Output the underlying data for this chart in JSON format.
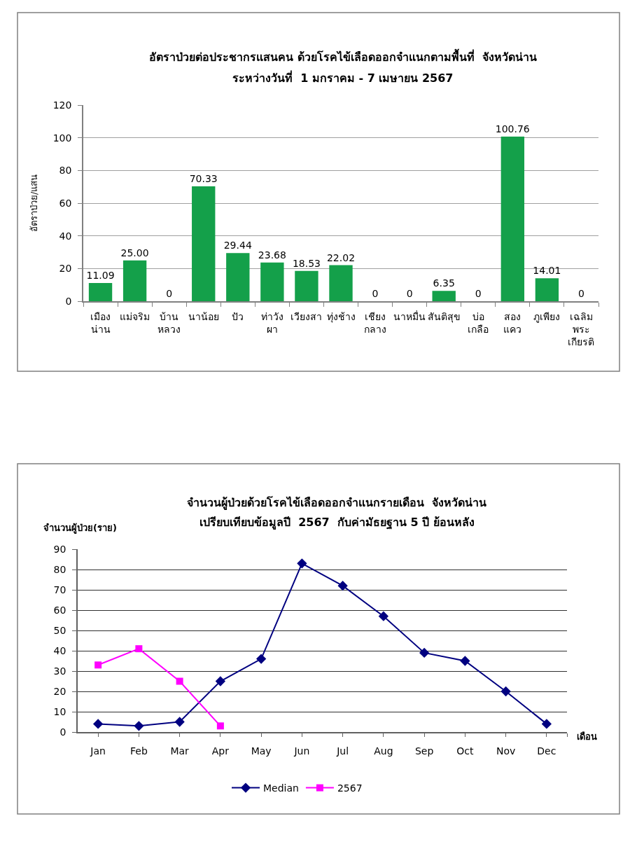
{
  "chart_data": [
    {
      "type": "bar",
      "title": "อัตราป่วยต่อประชากรแสนคน ด้วยโรคไข้เลือดออกจำแนกตามพื้นที่  จังหวัดน่าน",
      "subtitle": "ระหว่างวันที่  1 มกราคม - 7 เมษายน 2567",
      "ylabel": "อัตราป่วย/แสน",
      "categories": [
        "เมือง\nน่าน",
        "แม่จริม",
        "บ้าน\nหลวง",
        "นาน้อย",
        "ปัว",
        "ท่าวัง\nผา",
        "เวียงสา",
        "ทุ่งช้าง",
        "เชียง\nกลาง",
        "นาหมื่น",
        "สันติสุข",
        "บ่อ\nเกลือ",
        "สอง\nแคว",
        "ภูเพียง",
        "เฉลิม\nพระ\nเกียรติ"
      ],
      "values": [
        11.09,
        25.0,
        0,
        70.33,
        29.44,
        23.68,
        18.53,
        22.02,
        0,
        0,
        6.35,
        0,
        100.76,
        14.01,
        0
      ],
      "value_labels": [
        "11.09",
        "25.00",
        "0",
        "70.33",
        "29.44",
        "23.68",
        "18.53",
        "22.02",
        "0",
        "0",
        "6.35",
        "0",
        "100.76",
        "14.01",
        "0"
      ],
      "color": "#14a04a",
      "ylim": [
        0,
        120
      ],
      "yticks": [
        0,
        20,
        40,
        60,
        80,
        100,
        120
      ],
      "grid": "y",
      "legend": false
    },
    {
      "type": "line",
      "title": "จำนวนผู้ป่วยด้วยโรคไข้เลือดออกจำแนกรายเดือน  จังหวัดน่าน",
      "subtitle": "เปรียบเทียบข้อมูลปี  2567  กับค่ามัธยฐาน 5 ปี ย้อนหลัง",
      "ylabel": "จำนวนผู้ป่วย(ราย)",
      "xlabel": "เดือน",
      "categories": [
        "Jan",
        "Feb",
        "Mar",
        "Apr",
        "May",
        "Jun",
        "Jul",
        "Aug",
        "Sep",
        "Oct",
        "Nov",
        "Dec"
      ],
      "series": [
        {
          "name": "Median",
          "color": "#000080",
          "marker": "diamond",
          "values": [
            4,
            3,
            5,
            25,
            36,
            83,
            72,
            57,
            39,
            35,
            20,
            4
          ]
        },
        {
          "name": "2567",
          "color": "#ff00ff",
          "marker": "square",
          "values": [
            33,
            41,
            25,
            3,
            null,
            null,
            null,
            null,
            null,
            null,
            null,
            null
          ]
        }
      ],
      "ylim": [
        0,
        90
      ],
      "yticks": [
        0,
        10,
        20,
        30,
        40,
        50,
        60,
        70,
        80,
        90
      ],
      "grid": "y",
      "legend": "bottom"
    }
  ]
}
